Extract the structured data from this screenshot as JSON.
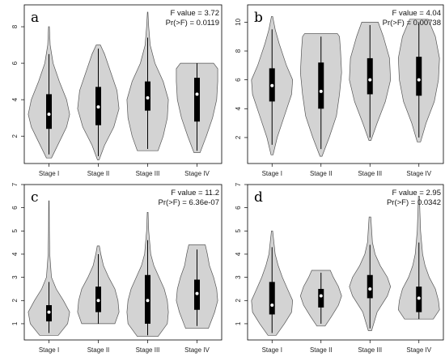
{
  "chart_data": [
    {
      "type": "violin",
      "panel_label": "a",
      "stat_f": "F value = 3.72",
      "stat_p": "Pr(>F) = 0.0119",
      "ylim": [
        0.5,
        9.2
      ],
      "yticks": [
        "2",
        "4",
        "6",
        "8"
      ],
      "categories": [
        "Stage I",
        "Stage II",
        "Stage III",
        "Stage IV"
      ],
      "series": [
        {
          "min": 0.8,
          "max": 8.0,
          "q1": 2.4,
          "median": 3.2,
          "q3": 4.3,
          "wlo": 1.0,
          "whi": 6.5,
          "shape": [
            [
              0.8,
              0.12
            ],
            [
              1.8,
              0.55
            ],
            [
              2.5,
              0.85
            ],
            [
              3.2,
              1.0
            ],
            [
              4.0,
              0.85
            ],
            [
              5.0,
              0.5
            ],
            [
              6.0,
              0.2
            ],
            [
              7.0,
              0.06
            ],
            [
              8.0,
              0.02
            ]
          ]
        },
        {
          "min": 0.7,
          "max": 7.0,
          "q1": 2.6,
          "median": 3.6,
          "q3": 4.7,
          "wlo": 0.9,
          "whi": 6.8,
          "shape": [
            [
              0.7,
              0.04
            ],
            [
              1.5,
              0.3
            ],
            [
              2.5,
              0.75
            ],
            [
              3.5,
              1.0
            ],
            [
              4.5,
              0.9
            ],
            [
              5.5,
              0.6
            ],
            [
              6.5,
              0.3
            ],
            [
              7.0,
              0.1
            ]
          ]
        },
        {
          "min": 1.2,
          "max": 8.8,
          "q1": 3.4,
          "median": 4.1,
          "q3": 5.0,
          "wlo": 1.3,
          "whi": 7.4,
          "shape": [
            [
              1.2,
              0.5
            ],
            [
              2.0,
              0.75
            ],
            [
              3.0,
              0.95
            ],
            [
              4.0,
              1.0
            ],
            [
              5.0,
              0.75
            ],
            [
              6.0,
              0.35
            ],
            [
              7.0,
              0.12
            ],
            [
              8.0,
              0.05
            ],
            [
              8.8,
              0.01
            ]
          ]
        },
        {
          "min": 1.1,
          "max": 6.0,
          "q1": 2.8,
          "median": 4.3,
          "q3": 5.2,
          "wlo": 1.2,
          "whi": 6.0,
          "shape": [
            [
              1.1,
              0.15
            ],
            [
              2.0,
              0.45
            ],
            [
              3.0,
              0.75
            ],
            [
              4.0,
              0.95
            ],
            [
              5.0,
              1.0
            ],
            [
              5.7,
              1.0
            ],
            [
              6.0,
              0.8
            ]
          ]
        }
      ]
    },
    {
      "type": "violin",
      "panel_label": "b",
      "stat_f": "F value = 4.04",
      "stat_p": "Pr(>F) = 0.00738",
      "ylim": [
        0.2,
        11.2
      ],
      "yticks": [
        "2",
        "4",
        "6",
        "8",
        "10"
      ],
      "categories": [
        "Stage I",
        "Stage II",
        "Stage III",
        "Stage IV"
      ],
      "series": [
        {
          "min": 0.8,
          "max": 10.4,
          "q1": 4.5,
          "median": 5.6,
          "q3": 6.8,
          "wlo": 1.5,
          "whi": 9.5,
          "shape": [
            [
              0.8,
              0.05
            ],
            [
              2.0,
              0.25
            ],
            [
              3.5,
              0.6
            ],
            [
              5.0,
              0.95
            ],
            [
              6.0,
              1.0
            ],
            [
              7.0,
              0.7
            ],
            [
              8.5,
              0.35
            ],
            [
              9.5,
              0.15
            ],
            [
              10.4,
              0.03
            ]
          ]
        },
        {
          "min": 0.7,
          "max": 9.2,
          "q1": 4.0,
          "median": 5.2,
          "q3": 7.2,
          "wlo": 1.2,
          "whi": 9.0,
          "shape": [
            [
              0.7,
              0.05
            ],
            [
              2.0,
              0.4
            ],
            [
              3.5,
              0.75
            ],
            [
              5.0,
              0.9
            ],
            [
              6.5,
              1.0
            ],
            [
              8.0,
              0.95
            ],
            [
              9.0,
              0.9
            ],
            [
              9.2,
              0.8
            ]
          ]
        },
        {
          "min": 1.8,
          "max": 10.0,
          "q1": 5.0,
          "median": 6.0,
          "q3": 7.5,
          "wlo": 2.0,
          "whi": 9.8,
          "shape": [
            [
              1.8,
              0.05
            ],
            [
              3.0,
              0.35
            ],
            [
              4.5,
              0.75
            ],
            [
              6.0,
              1.0
            ],
            [
              7.5,
              0.95
            ],
            [
              9.0,
              0.65
            ],
            [
              10.0,
              0.4
            ]
          ]
        },
        {
          "min": 1.7,
          "max": 10.2,
          "q1": 4.9,
          "median": 6.0,
          "q3": 7.6,
          "wlo": 2.0,
          "whi": 10.0,
          "shape": [
            [
              1.7,
              0.08
            ],
            [
              3.0,
              0.35
            ],
            [
              4.5,
              0.75
            ],
            [
              6.0,
              0.95
            ],
            [
              7.5,
              1.0
            ],
            [
              9.0,
              0.8
            ],
            [
              10.2,
              0.45
            ]
          ]
        }
      ]
    },
    {
      "type": "violin",
      "panel_label": "c",
      "stat_f": "F value = 11.2",
      "stat_p": "Pr(>F) = 6.36e-07",
      "ylim": [
        0.3,
        7.0
      ],
      "yticks": [
        "1",
        "2",
        "3",
        "4",
        "5",
        "6",
        "7"
      ],
      "categories": [
        "Stage I",
        "Stage II",
        "Stage III",
        "Stage IV"
      ],
      "series": [
        {
          "min": 0.5,
          "max": 6.3,
          "q1": 1.1,
          "median": 1.5,
          "q3": 1.8,
          "wlo": 0.6,
          "whi": 2.8,
          "shape": [
            [
              0.5,
              0.45
            ],
            [
              1.0,
              0.9
            ],
            [
              1.5,
              1.0
            ],
            [
              2.0,
              0.7
            ],
            [
              2.5,
              0.35
            ],
            [
              3.0,
              0.12
            ],
            [
              4.0,
              0.04
            ],
            [
              5.0,
              0.02
            ],
            [
              6.3,
              0.01
            ]
          ]
        },
        {
          "min": 1.0,
          "max": 4.35,
          "q1": 1.5,
          "median": 2.0,
          "q3": 2.6,
          "wlo": 1.0,
          "whi": 4.0,
          "shape": [
            [
              1.0,
              0.8
            ],
            [
              1.5,
              1.0
            ],
            [
              2.0,
              0.95
            ],
            [
              2.5,
              0.8
            ],
            [
              3.0,
              0.5
            ],
            [
              3.5,
              0.25
            ],
            [
              4.0,
              0.12
            ],
            [
              4.35,
              0.05
            ]
          ]
        },
        {
          "min": 0.45,
          "max": 5.8,
          "q1": 1.0,
          "median": 2.0,
          "q3": 3.1,
          "wlo": 0.5,
          "whi": 4.6,
          "shape": [
            [
              0.45,
              0.5
            ],
            [
              1.0,
              0.95
            ],
            [
              1.5,
              1.0
            ],
            [
              2.0,
              0.95
            ],
            [
              2.5,
              0.8
            ],
            [
              3.0,
              0.55
            ],
            [
              3.5,
              0.3
            ],
            [
              4.0,
              0.15
            ],
            [
              5.0,
              0.05
            ],
            [
              5.8,
              0.02
            ]
          ]
        },
        {
          "min": 0.8,
          "max": 4.4,
          "q1": 1.6,
          "median": 2.3,
          "q3": 2.9,
          "wlo": 0.9,
          "whi": 4.2,
          "shape": [
            [
              0.8,
              0.55
            ],
            [
              1.5,
              0.85
            ],
            [
              2.0,
              1.0
            ],
            [
              2.5,
              0.95
            ],
            [
              3.0,
              0.8
            ],
            [
              3.5,
              0.6
            ],
            [
              4.0,
              0.5
            ],
            [
              4.4,
              0.4
            ]
          ]
        }
      ]
    },
    {
      "type": "violin",
      "panel_label": "d",
      "stat_f": "F value = 2.95",
      "stat_p": "Pr(>F) = 0.0342",
      "ylim": [
        0.3,
        7.0
      ],
      "yticks": [
        "1",
        "2",
        "3",
        "4",
        "5",
        "6",
        "7"
      ],
      "categories": [
        "Stage I",
        "Stage II",
        "Stage III",
        "Stage IV"
      ],
      "series": [
        {
          "min": 0.5,
          "max": 5.0,
          "q1": 1.4,
          "median": 1.8,
          "q3": 2.8,
          "wlo": 0.6,
          "whi": 4.3,
          "shape": [
            [
              0.5,
              0.2
            ],
            [
              1.0,
              0.6
            ],
            [
              1.5,
              0.95
            ],
            [
              2.0,
              1.0
            ],
            [
              2.5,
              0.75
            ],
            [
              3.0,
              0.5
            ],
            [
              3.5,
              0.3
            ],
            [
              4.0,
              0.15
            ],
            [
              5.0,
              0.03
            ]
          ]
        },
        {
          "min": 0.9,
          "max": 3.3,
          "q1": 1.7,
          "median": 2.2,
          "q3": 2.5,
          "wlo": 1.0,
          "whi": 3.2,
          "shape": [
            [
              0.9,
              0.2
            ],
            [
              1.3,
              0.5
            ],
            [
              1.8,
              0.85
            ],
            [
              2.2,
              1.0
            ],
            [
              2.6,
              0.85
            ],
            [
              3.0,
              0.6
            ],
            [
              3.3,
              0.45
            ]
          ]
        },
        {
          "min": 0.7,
          "max": 5.6,
          "q1": 2.1,
          "median": 2.5,
          "q3": 3.1,
          "wlo": 0.8,
          "whi": 4.4,
          "shape": [
            [
              0.7,
              0.08
            ],
            [
              1.5,
              0.35
            ],
            [
              2.2,
              0.85
            ],
            [
              2.6,
              1.0
            ],
            [
              3.0,
              0.85
            ],
            [
              3.5,
              0.5
            ],
            [
              4.0,
              0.25
            ],
            [
              4.5,
              0.12
            ],
            [
              5.6,
              0.04
            ]
          ]
        },
        {
          "min": 1.2,
          "max": 6.5,
          "q1": 1.5,
          "median": 2.1,
          "q3": 2.6,
          "wlo": 1.2,
          "whi": 4.5,
          "shape": [
            [
              1.2,
              0.7
            ],
            [
              1.6,
              1.0
            ],
            [
              2.0,
              0.95
            ],
            [
              2.5,
              0.8
            ],
            [
              3.0,
              0.5
            ],
            [
              3.5,
              0.3
            ],
            [
              4.0,
              0.18
            ],
            [
              5.0,
              0.08
            ],
            [
              6.0,
              0.04
            ],
            [
              6.5,
              0.02
            ]
          ]
        }
      ]
    }
  ]
}
